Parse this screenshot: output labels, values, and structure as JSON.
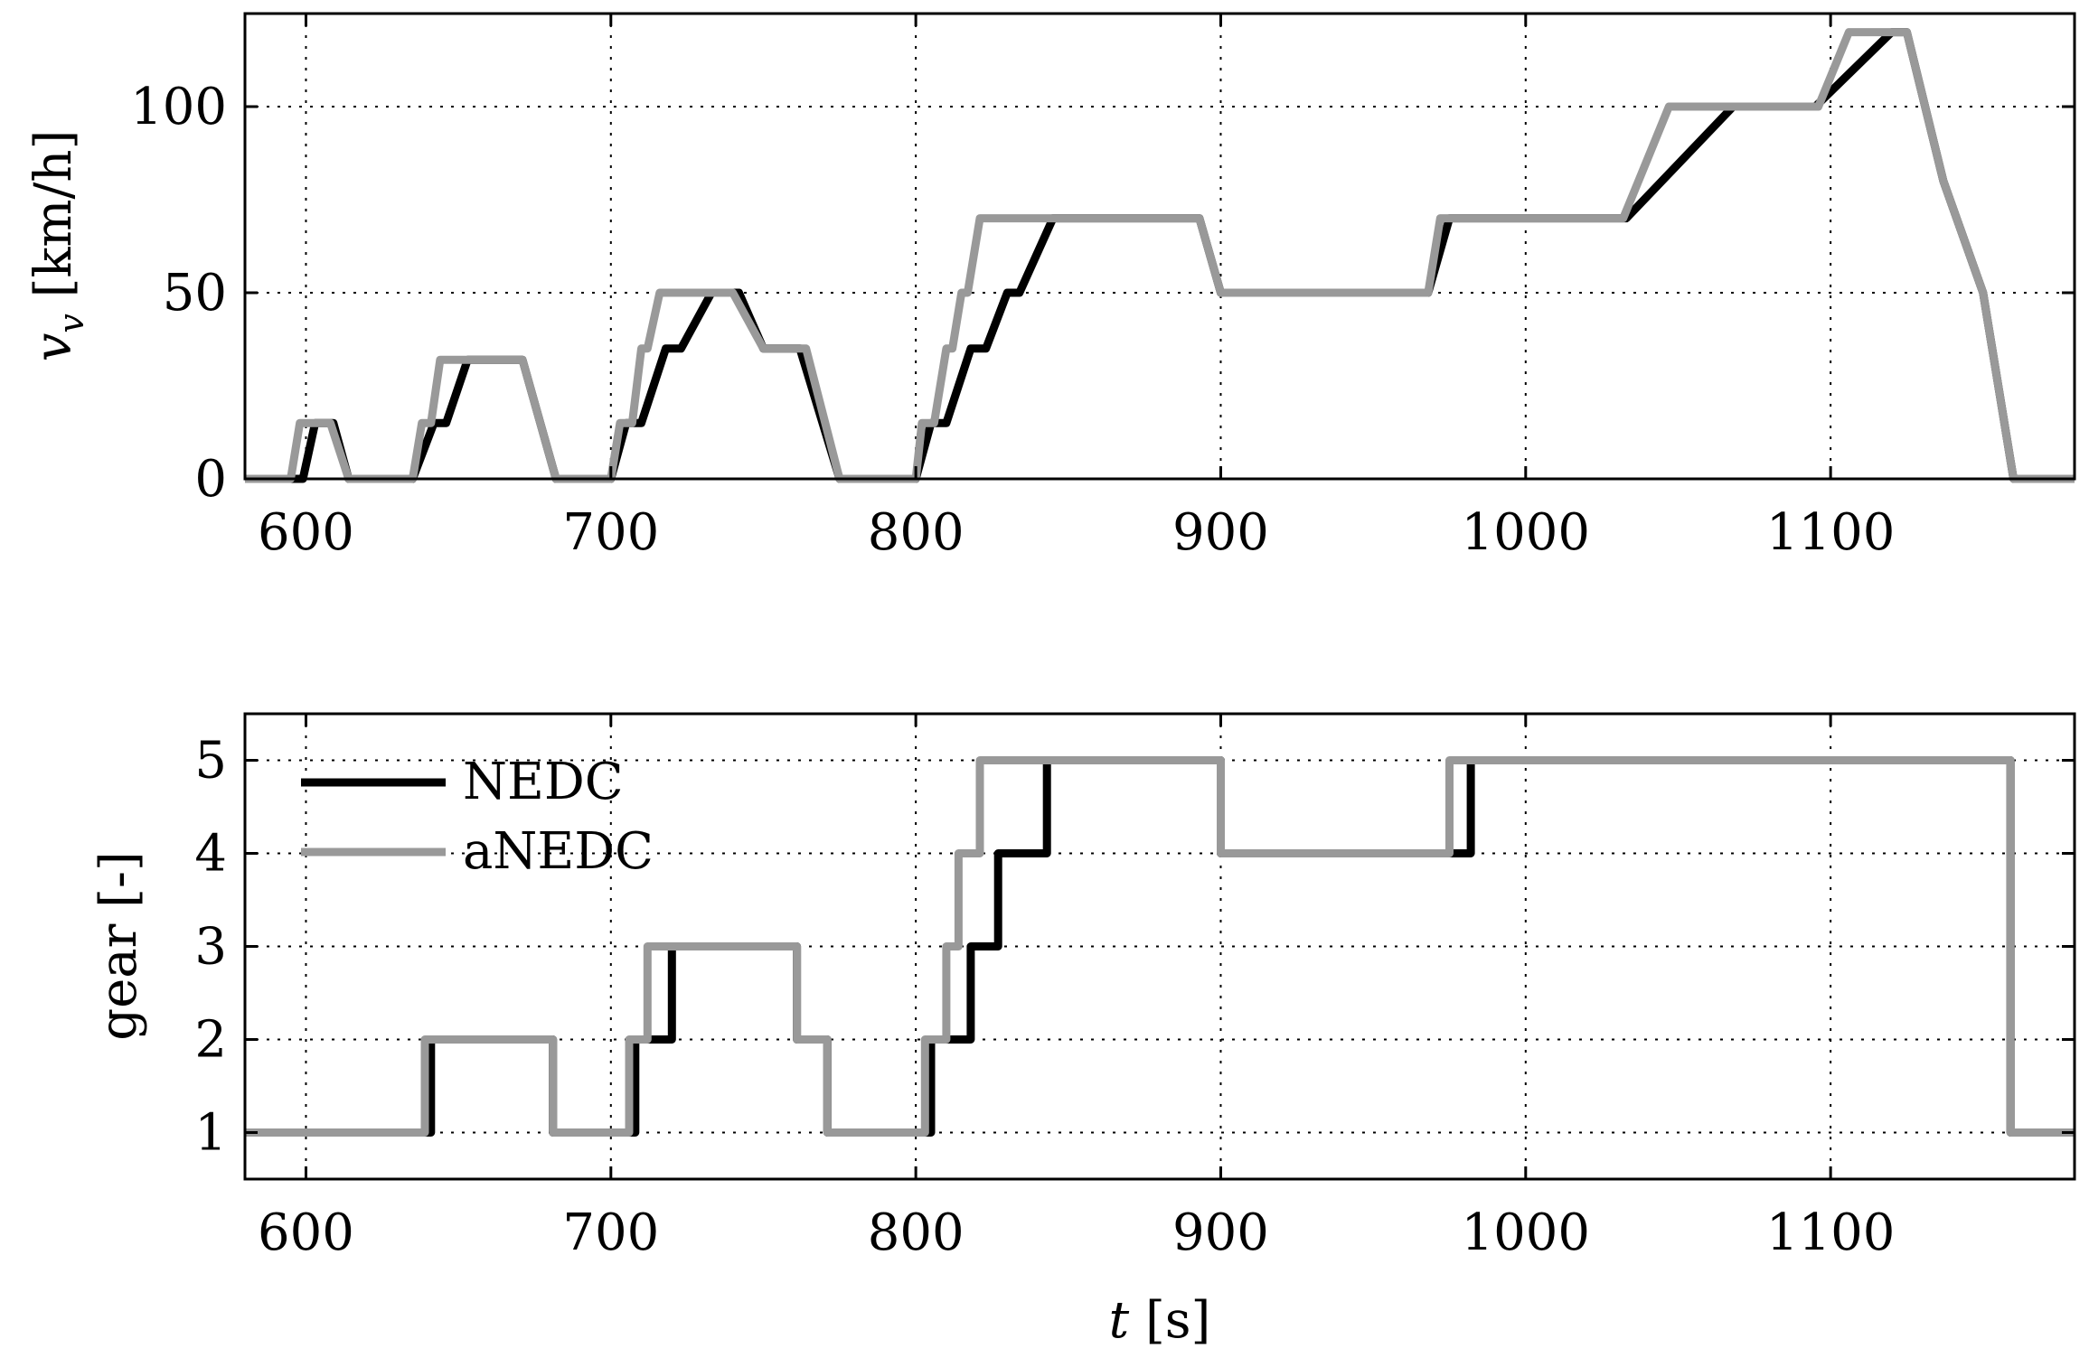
{
  "chart_data": [
    {
      "type": "line",
      "ylabel": "v_v [km/h]",
      "ylabel_parts": {
        "symbol": "v",
        "subscript": "v",
        "unit": " [km/h]"
      },
      "xlabel": "",
      "xlim": [
        580,
        1180
      ],
      "ylim": [
        0,
        125
      ],
      "xticks": [
        600,
        700,
        800,
        900,
        1000,
        1100
      ],
      "yticks": [
        0,
        50,
        100
      ],
      "grid": true,
      "series": [
        {
          "name": "NEDC",
          "color": "#000000",
          "points": [
            [
              580,
              0
            ],
            [
              599,
              0
            ],
            [
              603,
              15
            ],
            [
              609,
              15
            ],
            [
              614,
              0
            ],
            [
              635,
              0
            ],
            [
              642,
              15
            ],
            [
              646,
              15
            ],
            [
              653,
              32
            ],
            [
              671,
              32
            ],
            [
              682,
              0
            ],
            [
              700,
              0
            ],
            [
              705,
              15
            ],
            [
              710,
              15
            ],
            [
              718,
              35
            ],
            [
              723,
              35
            ],
            [
              733,
              50
            ],
            [
              742,
              50
            ],
            [
              750,
              35
            ],
            [
              762,
              35
            ],
            [
              775,
              0
            ],
            [
              800,
              0
            ],
            [
              805,
              15
            ],
            [
              810,
              15
            ],
            [
              818,
              35
            ],
            [
              823,
              35
            ],
            [
              830,
              50
            ],
            [
              834,
              50
            ],
            [
              845,
              70
            ],
            [
              893,
              70
            ],
            [
              900,
              50
            ],
            [
              968,
              50
            ],
            [
              975,
              70
            ],
            [
              1033,
              70
            ],
            [
              1068,
              100
            ],
            [
              1095,
              100
            ],
            [
              1120,
              120
            ],
            [
              1125,
              120
            ],
            [
              1137,
              80
            ],
            [
              1150,
              50
            ],
            [
              1160,
              0
            ],
            [
              1180,
              0
            ]
          ]
        },
        {
          "name": "aNEDC",
          "color": "#999999",
          "points": [
            [
              580,
              0
            ],
            [
              595,
              0
            ],
            [
              598,
              15
            ],
            [
              608,
              15
            ],
            [
              614,
              0
            ],
            [
              635,
              0
            ],
            [
              638,
              15
            ],
            [
              641,
              15
            ],
            [
              644,
              32
            ],
            [
              671,
              32
            ],
            [
              682,
              0
            ],
            [
              700,
              0
            ],
            [
              703,
              15
            ],
            [
              707,
              15
            ],
            [
              710,
              35
            ],
            [
              712,
              35
            ],
            [
              716,
              50
            ],
            [
              740,
              50
            ],
            [
              750,
              35
            ],
            [
              764,
              35
            ],
            [
              775,
              0
            ],
            [
              800,
              0
            ],
            [
              802,
              15
            ],
            [
              806,
              15
            ],
            [
              810,
              35
            ],
            [
              812,
              35
            ],
            [
              815,
              50
            ],
            [
              817,
              50
            ],
            [
              821,
              70
            ],
            [
              893,
              70
            ],
            [
              900,
              50
            ],
            [
              968,
              50
            ],
            [
              972,
              70
            ],
            [
              1032,
              70
            ],
            [
              1037,
              80
            ],
            [
              1047,
              100
            ],
            [
              1096,
              100
            ],
            [
              1106,
              120
            ],
            [
              1125,
              120
            ],
            [
              1137,
              80
            ],
            [
              1150,
              50
            ],
            [
              1160,
              0
            ],
            [
              1180,
              0
            ]
          ]
        }
      ]
    },
    {
      "type": "line",
      "ylabel": "gear [-]",
      "xlabel": "t [s]",
      "xlabel_parts": {
        "symbol": "t",
        "unit": " [s]"
      },
      "xlim": [
        580,
        1180
      ],
      "ylim": [
        0.5,
        5.5
      ],
      "xticks": [
        600,
        700,
        800,
        900,
        1000,
        1100
      ],
      "yticks": [
        1,
        2,
        3,
        4,
        5
      ],
      "grid": true,
      "legend": {
        "position": "top-left",
        "entries": [
          "NEDC",
          "aNEDC"
        ]
      },
      "series": [
        {
          "name": "NEDC",
          "color": "#000000",
          "steps": [
            [
              580,
              1
            ],
            [
              641,
              2
            ],
            [
              681,
              1
            ],
            [
              708,
              2
            ],
            [
              720,
              3
            ],
            [
              761,
              2
            ],
            [
              771,
              1
            ],
            [
              805,
              2
            ],
            [
              818,
              3
            ],
            [
              827,
              4
            ],
            [
              843,
              5
            ],
            [
              900,
              4
            ],
            [
              982,
              5
            ],
            [
              1159,
              1
            ],
            [
              1180,
              1
            ]
          ]
        },
        {
          "name": "aNEDC",
          "color": "#999999",
          "steps": [
            [
              580,
              1
            ],
            [
              639,
              2
            ],
            [
              681,
              1
            ],
            [
              706,
              2
            ],
            [
              712,
              3
            ],
            [
              761,
              2
            ],
            [
              771,
              1
            ],
            [
              803,
              2
            ],
            [
              810,
              3
            ],
            [
              814,
              4
            ],
            [
              821,
              5
            ],
            [
              900,
              4
            ],
            [
              975,
              5
            ],
            [
              1159,
              1
            ],
            [
              1180,
              1
            ]
          ]
        }
      ]
    }
  ]
}
